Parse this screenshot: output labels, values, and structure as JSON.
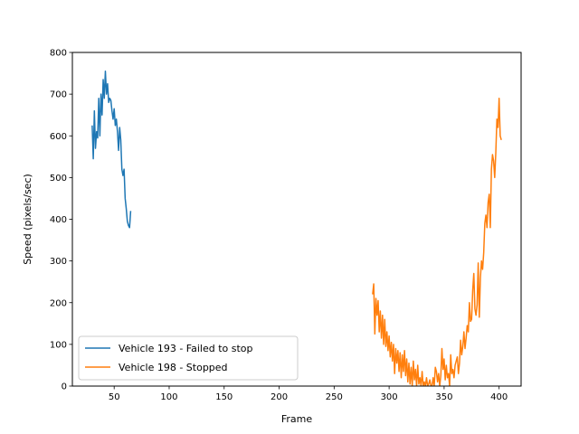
{
  "chart_data": {
    "type": "line",
    "xlabel": "Frame",
    "ylabel": "Speed (pixels/sec)",
    "xlim": [
      12,
      420
    ],
    "ylim": [
      0,
      800
    ],
    "x_ticks": [
      50,
      100,
      150,
      200,
      250,
      300,
      350,
      400
    ],
    "y_ticks": [
      0,
      100,
      200,
      300,
      400,
      500,
      600,
      700,
      800
    ],
    "legend_position": "lower-left",
    "grid": false,
    "series": [
      {
        "name": "Vehicle 193 - Failed to stop",
        "color": "#1f77b4",
        "x": [
          30,
          31,
          32,
          33,
          34,
          35,
          36,
          37,
          38,
          39,
          40,
          41,
          42,
          43,
          44,
          45,
          46,
          47,
          48,
          49,
          50,
          51,
          52,
          53,
          54,
          55,
          56,
          57,
          58,
          59,
          60,
          61,
          62,
          63,
          64,
          65
        ],
        "y": [
          625,
          545,
          660,
          570,
          610,
          595,
          690,
          600,
          700,
          650,
          735,
          690,
          755,
          700,
          725,
          680,
          690,
          685,
          660,
          640,
          665,
          625,
          640,
          610,
          565,
          620,
          590,
          520,
          505,
          520,
          450,
          425,
          395,
          385,
          380,
          420
        ]
      },
      {
        "name": "Vehicle 198 - Stopped",
        "color": "#ff7f0e",
        "x": [
          285,
          286,
          287,
          288,
          289,
          290,
          291,
          292,
          293,
          294,
          295,
          296,
          297,
          298,
          299,
          300,
          301,
          302,
          303,
          304,
          305,
          306,
          307,
          308,
          309,
          310,
          311,
          312,
          313,
          314,
          315,
          316,
          317,
          318,
          319,
          320,
          321,
          322,
          323,
          324,
          325,
          326,
          327,
          328,
          329,
          330,
          331,
          332,
          333,
          334,
          335,
          336,
          337,
          338,
          339,
          340,
          341,
          342,
          343,
          344,
          345,
          346,
          347,
          348,
          349,
          350,
          351,
          352,
          353,
          354,
          355,
          356,
          357,
          358,
          359,
          360,
          361,
          362,
          363,
          364,
          365,
          366,
          367,
          368,
          369,
          370,
          371,
          372,
          373,
          374,
          375,
          376,
          377,
          378,
          379,
          380,
          381,
          382,
          383,
          384,
          385,
          386,
          387,
          388,
          389,
          390,
          391,
          392,
          393,
          394,
          395,
          396,
          397,
          398,
          399,
          400,
          401,
          402
        ],
        "y": [
          220,
          245,
          125,
          210,
          170,
          205,
          130,
          180,
          115,
          170,
          100,
          160,
          95,
          130,
          85,
          120,
          70,
          105,
          60,
          100,
          30,
          90,
          55,
          85,
          35,
          80,
          20,
          75,
          35,
          85,
          25,
          65,
          10,
          55,
          5,
          45,
          0,
          60,
          15,
          40,
          0,
          50,
          5,
          20,
          0,
          35,
          0,
          10,
          0,
          20,
          0,
          5,
          15,
          0,
          0,
          20,
          0,
          45,
          35,
          10,
          30,
          0,
          25,
          90,
          40,
          65,
          15,
          50,
          20,
          30,
          0,
          75,
          30,
          40,
          20,
          50,
          60,
          70,
          30,
          55,
          110,
          75,
          95,
          130,
          90,
          115,
          145,
          130,
          200,
          155,
          160,
          230,
          270,
          185,
          170,
          195,
          295,
          165,
          260,
          300,
          280,
          320,
          390,
          410,
          380,
          440,
          460,
          380,
          520,
          555,
          540,
          500,
          560,
          640,
          620,
          690,
          600,
          590
        ]
      }
    ]
  }
}
